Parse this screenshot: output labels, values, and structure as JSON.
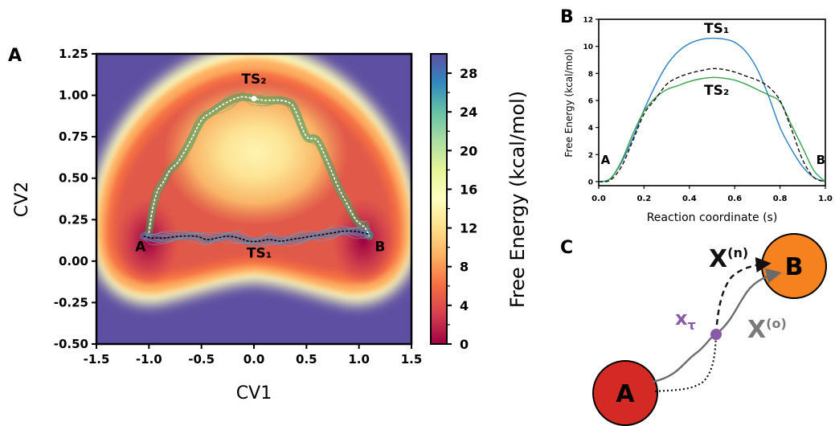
{
  "panel_labels": {
    "a": "A",
    "b": "B",
    "c": "C"
  },
  "colors": {
    "ts1_curve": "#2f7ec0",
    "ts2_curve": "#3aa04a",
    "dashed_curve": "#111111",
    "node_a": "#d42a24",
    "node_b": "#f5821e",
    "x_tau": "#8a5aa8",
    "x_old": "#7a7a7a"
  },
  "chart_data": [
    {
      "type": "heatmap",
      "colormap": "Spectral",
      "xlabel": "CV1",
      "ylabel": "CV2",
      "xlim": [
        -1.5,
        1.5
      ],
      "ylim": [
        -0.5,
        1.25
      ],
      "xticks": [
        "-1.5",
        "-1.0",
        "-0.5",
        "0.0",
        "0.5",
        "1.0",
        "1.5"
      ],
      "yticks": [
        "-0.50",
        "-0.25",
        "0.00",
        "0.25",
        "0.50",
        "0.75",
        "1.00",
        "1.25"
      ],
      "colorbar": {
        "label": "Free Energy (kcal/mol)",
        "min": 0,
        "max": 30,
        "ticks": [
          "0",
          "4",
          "8",
          "12",
          "16",
          "20",
          "24",
          "28"
        ]
      },
      "annotations": [
        {
          "text": "TS₂",
          "x": 0.0,
          "y": 1.07
        },
        {
          "text": "TS₁",
          "x": 0.05,
          "y": 0.02
        },
        {
          "text": "A",
          "x": -1.08,
          "y": 0.06
        },
        {
          "text": "B",
          "x": 1.2,
          "y": 0.06
        }
      ],
      "series": [
        {
          "name": "TS₂",
          "x": [
            -1.0,
            -0.97,
            -0.92,
            -0.86,
            -0.8,
            -0.72,
            -0.6,
            -0.5,
            -0.4,
            -0.25,
            -0.12,
            0.0,
            0.1,
            0.25,
            0.35,
            0.4,
            0.5,
            0.6,
            0.7,
            0.8,
            0.9,
            0.97,
            1.02,
            1.06,
            1.1
          ],
          "y": [
            0.17,
            0.3,
            0.42,
            0.48,
            0.55,
            0.6,
            0.73,
            0.85,
            0.9,
            0.96,
            0.99,
            0.98,
            0.97,
            0.97,
            0.95,
            0.9,
            0.75,
            0.73,
            0.6,
            0.45,
            0.33,
            0.25,
            0.22,
            0.2,
            0.15
          ]
        },
        {
          "name": "TS₁",
          "x": [
            -1.05,
            -0.98,
            -0.85,
            -0.7,
            -0.55,
            -0.45,
            -0.35,
            -0.25,
            -0.15,
            -0.05,
            0.05,
            0.15,
            0.25,
            0.35,
            0.45,
            0.55,
            0.65,
            0.75,
            0.85,
            0.95,
            1.05,
            1.1
          ],
          "y": [
            0.15,
            0.14,
            0.14,
            0.15,
            0.15,
            0.13,
            0.14,
            0.15,
            0.14,
            0.12,
            0.12,
            0.13,
            0.12,
            0.13,
            0.14,
            0.15,
            0.16,
            0.17,
            0.18,
            0.18,
            0.17,
            0.16
          ]
        }
      ],
      "markers": [
        {
          "label": "TS₂",
          "x": 0.0,
          "y": 0.98
        }
      ]
    },
    {
      "type": "line",
      "xlabel": "Reaction coordinate (s)",
      "ylabel": "Free Energy (kcal/mol)",
      "xlim": [
        0,
        1
      ],
      "ylim": [
        -0.3,
        12
      ],
      "xticks": [
        "0.0",
        "0.2",
        "0.4",
        "0.6",
        "0.8",
        "1.0"
      ],
      "yticks": [
        "0",
        "2",
        "4",
        "6",
        "8",
        "10",
        "12"
      ],
      "annotations": [
        {
          "text": "TS₁",
          "x": 0.52,
          "y": 11.0
        },
        {
          "text": "TS₂",
          "x": 0.52,
          "y": 6.4
        },
        {
          "text": "A",
          "x": 0.03,
          "y": 1.3
        },
        {
          "text": "B",
          "x": 0.98,
          "y": 1.3
        }
      ],
      "x": [
        0.0,
        0.05,
        0.1,
        0.15,
        0.2,
        0.25,
        0.3,
        0.35,
        0.4,
        0.45,
        0.5,
        0.55,
        0.6,
        0.65,
        0.7,
        0.75,
        0.8,
        0.85,
        0.9,
        0.95,
        1.0
      ],
      "series": [
        {
          "name": "TS₁",
          "color": "#2f7ec0",
          "dash": "solid",
          "values": [
            0.0,
            0.2,
            1.4,
            3.2,
            5.3,
            7.1,
            8.6,
            9.6,
            10.2,
            10.5,
            10.6,
            10.55,
            10.3,
            9.6,
            8.3,
            6.3,
            4.0,
            2.4,
            1.1,
            0.3,
            0.0
          ]
        },
        {
          "name": "TS₂",
          "color": "#3aa04a",
          "dash": "solid",
          "values": [
            0.0,
            0.2,
            1.5,
            3.5,
            5.2,
            6.2,
            6.8,
            7.1,
            7.4,
            7.6,
            7.7,
            7.65,
            7.5,
            7.2,
            6.8,
            6.4,
            5.9,
            4.2,
            2.5,
            0.8,
            0.0
          ]
        },
        {
          "name": "",
          "color": "#111111",
          "dash": "dashed",
          "values": [
            0.0,
            0.1,
            1.1,
            3.0,
            5.0,
            6.1,
            7.2,
            7.7,
            8.0,
            8.2,
            8.35,
            8.3,
            8.1,
            7.8,
            7.5,
            7.0,
            6.0,
            3.9,
            1.6,
            0.3,
            0.0
          ]
        }
      ]
    },
    {
      "type": "diagram",
      "nodes": [
        {
          "label": "A",
          "color": "#d42a24"
        },
        {
          "label": "B",
          "color": "#f5821e"
        }
      ],
      "labels": {
        "x_tau": {
          "base": "x",
          "sub": "τ"
        },
        "x_new": {
          "base": "X",
          "sup": "(n)"
        },
        "x_old": {
          "base": "X",
          "sup": "(o)"
        }
      }
    }
  ]
}
